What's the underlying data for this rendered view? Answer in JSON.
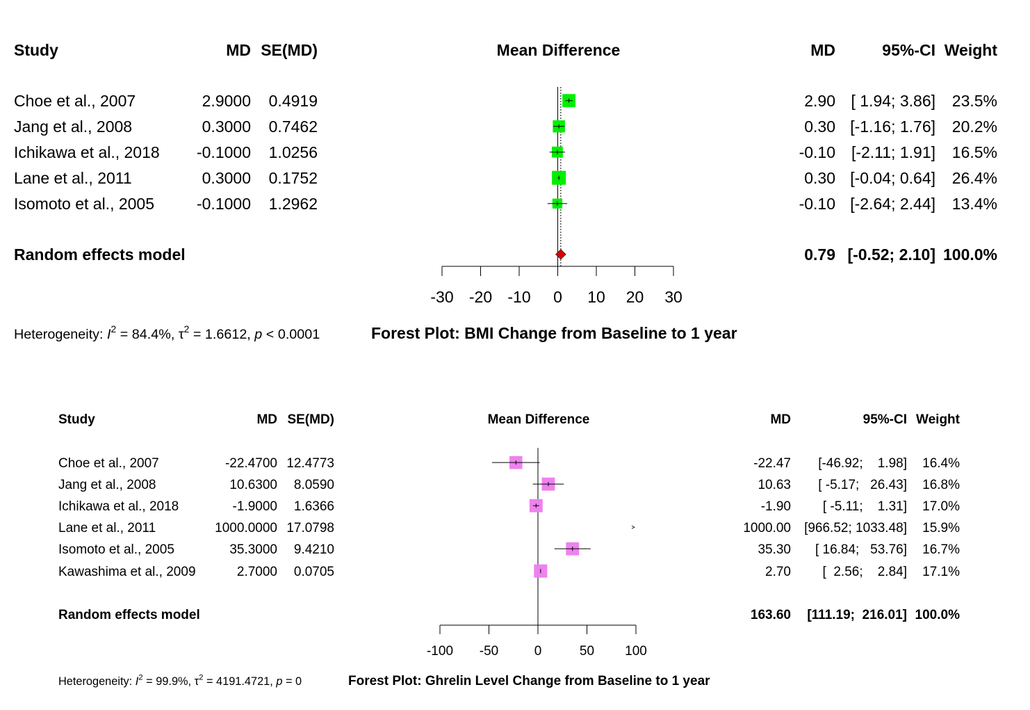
{
  "chart_data": [
    {
      "type": "forest",
      "title": "Forest Plot: BMI Change from Baseline to 1 year",
      "headers": {
        "study": "Study",
        "md": "MD",
        "se": "SE(MD)",
        "plot": "Mean Difference",
        "md_right": "MD",
        "ci": "95%-CI",
        "weight": "Weight"
      },
      "xlim": [
        -30,
        30
      ],
      "ticks": [
        -30,
        -20,
        -10,
        0,
        10,
        20,
        30
      ],
      "studies": [
        {
          "name": "Choe et al., 2007",
          "md": 2.9,
          "se": 0.4919,
          "lower": 1.94,
          "upper": 3.86,
          "weight": 23.5,
          "md_text": "2.9000",
          "se_text": "0.4919",
          "md_right": "2.90",
          "ci_text": "[ 1.94; 3.86]",
          "weight_text": "23.5%"
        },
        {
          "name": "Jang et al., 2008",
          "md": 0.3,
          "se": 0.7462,
          "lower": -1.16,
          "upper": 1.76,
          "weight": 20.2,
          "md_text": "0.3000",
          "se_text": "0.7462",
          "md_right": "0.30",
          "ci_text": "[-1.16; 1.76]",
          "weight_text": "20.2%"
        },
        {
          "name": "Ichikawa et al., 2018",
          "md": -0.1,
          "se": 1.0256,
          "lower": -2.11,
          "upper": 1.91,
          "weight": 16.5,
          "md_text": "-0.1000",
          "se_text": "1.0256",
          "md_right": "-0.10",
          "ci_text": "[-2.11; 1.91]",
          "weight_text": "16.5%"
        },
        {
          "name": "Lane et al., 2011",
          "md": 0.3,
          "se": 0.1752,
          "lower": -0.04,
          "upper": 0.64,
          "weight": 26.4,
          "md_text": "0.3000",
          "se_text": "0.1752",
          "md_right": "0.30",
          "ci_text": "[-0.04; 0.64]",
          "weight_text": "26.4%"
        },
        {
          "name": "Isomoto et al., 2005",
          "md": -0.1,
          "se": 1.2962,
          "lower": -2.64,
          "upper": 2.44,
          "weight": 13.4,
          "md_text": "-0.1000",
          "se_text": "1.2962",
          "md_right": "-0.10",
          "ci_text": "[-2.64; 2.44]",
          "weight_text": "13.4%"
        }
      ],
      "pooled": {
        "label": "Random effects model",
        "md": 0.79,
        "lower": -0.52,
        "upper": 2.1,
        "md_right": "0.79",
        "ci_text": "[-0.52; 2.10]",
        "weight_text": "100.0%"
      },
      "heterogeneity": {
        "prefix": "Heterogeneity: ",
        "i2_sym": "I",
        "sup": "2",
        "i2_val": " = 84.4%, ",
        "tau_sym": "τ",
        "tau_val": " = 1.6612, ",
        "p_sym": "p",
        "p_val": " < 0.0001"
      },
      "colors": {
        "box": "#00ee00",
        "diamond": "#dd0000",
        "box_line": "#ffffff"
      }
    },
    {
      "type": "forest",
      "title": "Forest Plot: Ghrelin Level Change from Baseline to 1 year",
      "headers": {
        "study": "Study",
        "md": "MD",
        "se": "SE(MD)",
        "plot": "Mean Difference",
        "md_right": "MD",
        "ci": "95%-CI",
        "weight": "Weight"
      },
      "xlim": [
        -100,
        100
      ],
      "ticks": [
        -100,
        -50,
        0,
        50,
        100
      ],
      "studies": [
        {
          "name": "Choe et al., 2007",
          "md": -22.47,
          "se": 12.4773,
          "lower": -46.92,
          "upper": 1.98,
          "weight": 16.4,
          "md_text": "-22.4700",
          "se_text": "12.4773",
          "md_right": "-22.47",
          "ci_text": "[-46.92;    1.98]",
          "weight_text": "16.4%"
        },
        {
          "name": "Jang et al., 2008",
          "md": 10.63,
          "se": 8.059,
          "lower": -5.17,
          "upper": 26.43,
          "weight": 16.8,
          "md_text": "10.6300",
          "se_text": "8.0590",
          "md_right": "10.63",
          "ci_text": "[ -5.17;   26.43]",
          "weight_text": "16.8%"
        },
        {
          "name": "Ichikawa et al., 2018",
          "md": -1.9,
          "se": 1.6366,
          "lower": -5.11,
          "upper": 1.31,
          "weight": 17.0,
          "md_text": "-1.9000",
          "se_text": "1.6366",
          "md_right": "-1.90",
          "ci_text": "[ -5.11;    1.31]",
          "weight_text": "17.0%"
        },
        {
          "name": "Lane et al., 2011",
          "md": 1000.0,
          "se": 17.0798,
          "lower": 966.52,
          "upper": 1033.48,
          "weight": 15.9,
          "md_text": "1000.0000",
          "se_text": "17.0798",
          "md_right": "1000.00",
          "ci_text": "[966.52; 1033.48]",
          "weight_text": "15.9%"
        },
        {
          "name": "Isomoto et al., 2005",
          "md": 35.3,
          "se": 9.421,
          "lower": 16.84,
          "upper": 53.76,
          "weight": 16.7,
          "md_text": "35.3000",
          "se_text": "9.4210",
          "md_right": "35.30",
          "ci_text": "[ 16.84;   53.76]",
          "weight_text": "16.7%"
        },
        {
          "name": "Kawashima et al., 2009",
          "md": 2.7,
          "se": 0.0705,
          "lower": 2.56,
          "upper": 2.84,
          "weight": 17.1,
          "md_text": "2.7000",
          "se_text": "0.0705",
          "md_right": "2.70",
          "ci_text": "[  2.56;    2.84]",
          "weight_text": "17.1%"
        }
      ],
      "pooled": {
        "label": "Random effects model",
        "md": 163.6,
        "lower": 111.19,
        "upper": 216.01,
        "md_right": "163.60",
        "ci_text": "[111.19;  216.01]",
        "weight_text": "100.0%"
      },
      "heterogeneity": {
        "prefix": "Heterogeneity: ",
        "i2_sym": "I",
        "sup": "2",
        "i2_val": " = 99.9%, ",
        "tau_sym": "τ",
        "tau_val": " = 4191.4721, ",
        "p_sym": "p",
        "p_val": " = 0"
      },
      "colors": {
        "box": "#ee82ee",
        "diamond": "#dd0000",
        "box_line": "#ffffff"
      }
    }
  ]
}
